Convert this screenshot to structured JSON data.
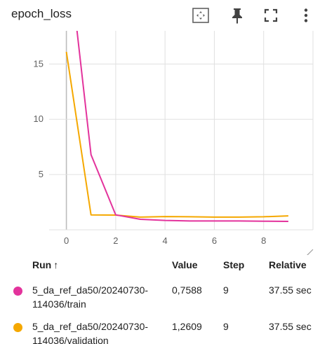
{
  "header": {
    "title": "epoch_loss",
    "icons": [
      "fit-domain-icon",
      "pin-icon",
      "fullscreen-icon",
      "more-vert-icon"
    ]
  },
  "chart_data": {
    "type": "line",
    "title": "epoch_loss",
    "xlabel": "",
    "ylabel": "",
    "xlim": [
      -0.7,
      10
    ],
    "ylim": [
      0,
      18
    ],
    "xticks": [
      0,
      2,
      4,
      6,
      8
    ],
    "yticks": [
      5,
      10,
      15
    ],
    "grid": true,
    "series": [
      {
        "name": "5_da_ref_da50/20240730-114036/train",
        "color": "#e3339c",
        "x": [
          0,
          1,
          2,
          3,
          4,
          5,
          6,
          7,
          8,
          9
        ],
        "y": [
          26.5,
          6.8,
          1.35,
          0.95,
          0.85,
          0.8,
          0.8,
          0.8,
          0.78,
          0.7588
        ]
      },
      {
        "name": "5_da_ref_da50/20240730-114036/validation",
        "color": "#f5a800",
        "x": [
          0,
          1,
          2,
          3,
          4,
          5,
          6,
          7,
          8,
          9
        ],
        "y": [
          16.1,
          1.35,
          1.33,
          1.15,
          1.2,
          1.18,
          1.15,
          1.15,
          1.18,
          1.2609
        ]
      }
    ]
  },
  "table": {
    "headers": {
      "run": "Run",
      "sort_arrow": "↑",
      "value": "Value",
      "step": "Step",
      "relative": "Relative"
    },
    "rows": [
      {
        "name_line1": "5_da_ref_da50/20240730-",
        "name_line2": "114036/train",
        "value": "0,7588",
        "step": "9",
        "relative": "37.55 sec",
        "color": "#e3339c"
      },
      {
        "name_line1": "5_da_ref_da50/20240730-",
        "name_line2": "114036/validation",
        "value": "1,2609",
        "step": "9",
        "relative": "37.55 sec",
        "color": "#f5a800"
      }
    ]
  }
}
